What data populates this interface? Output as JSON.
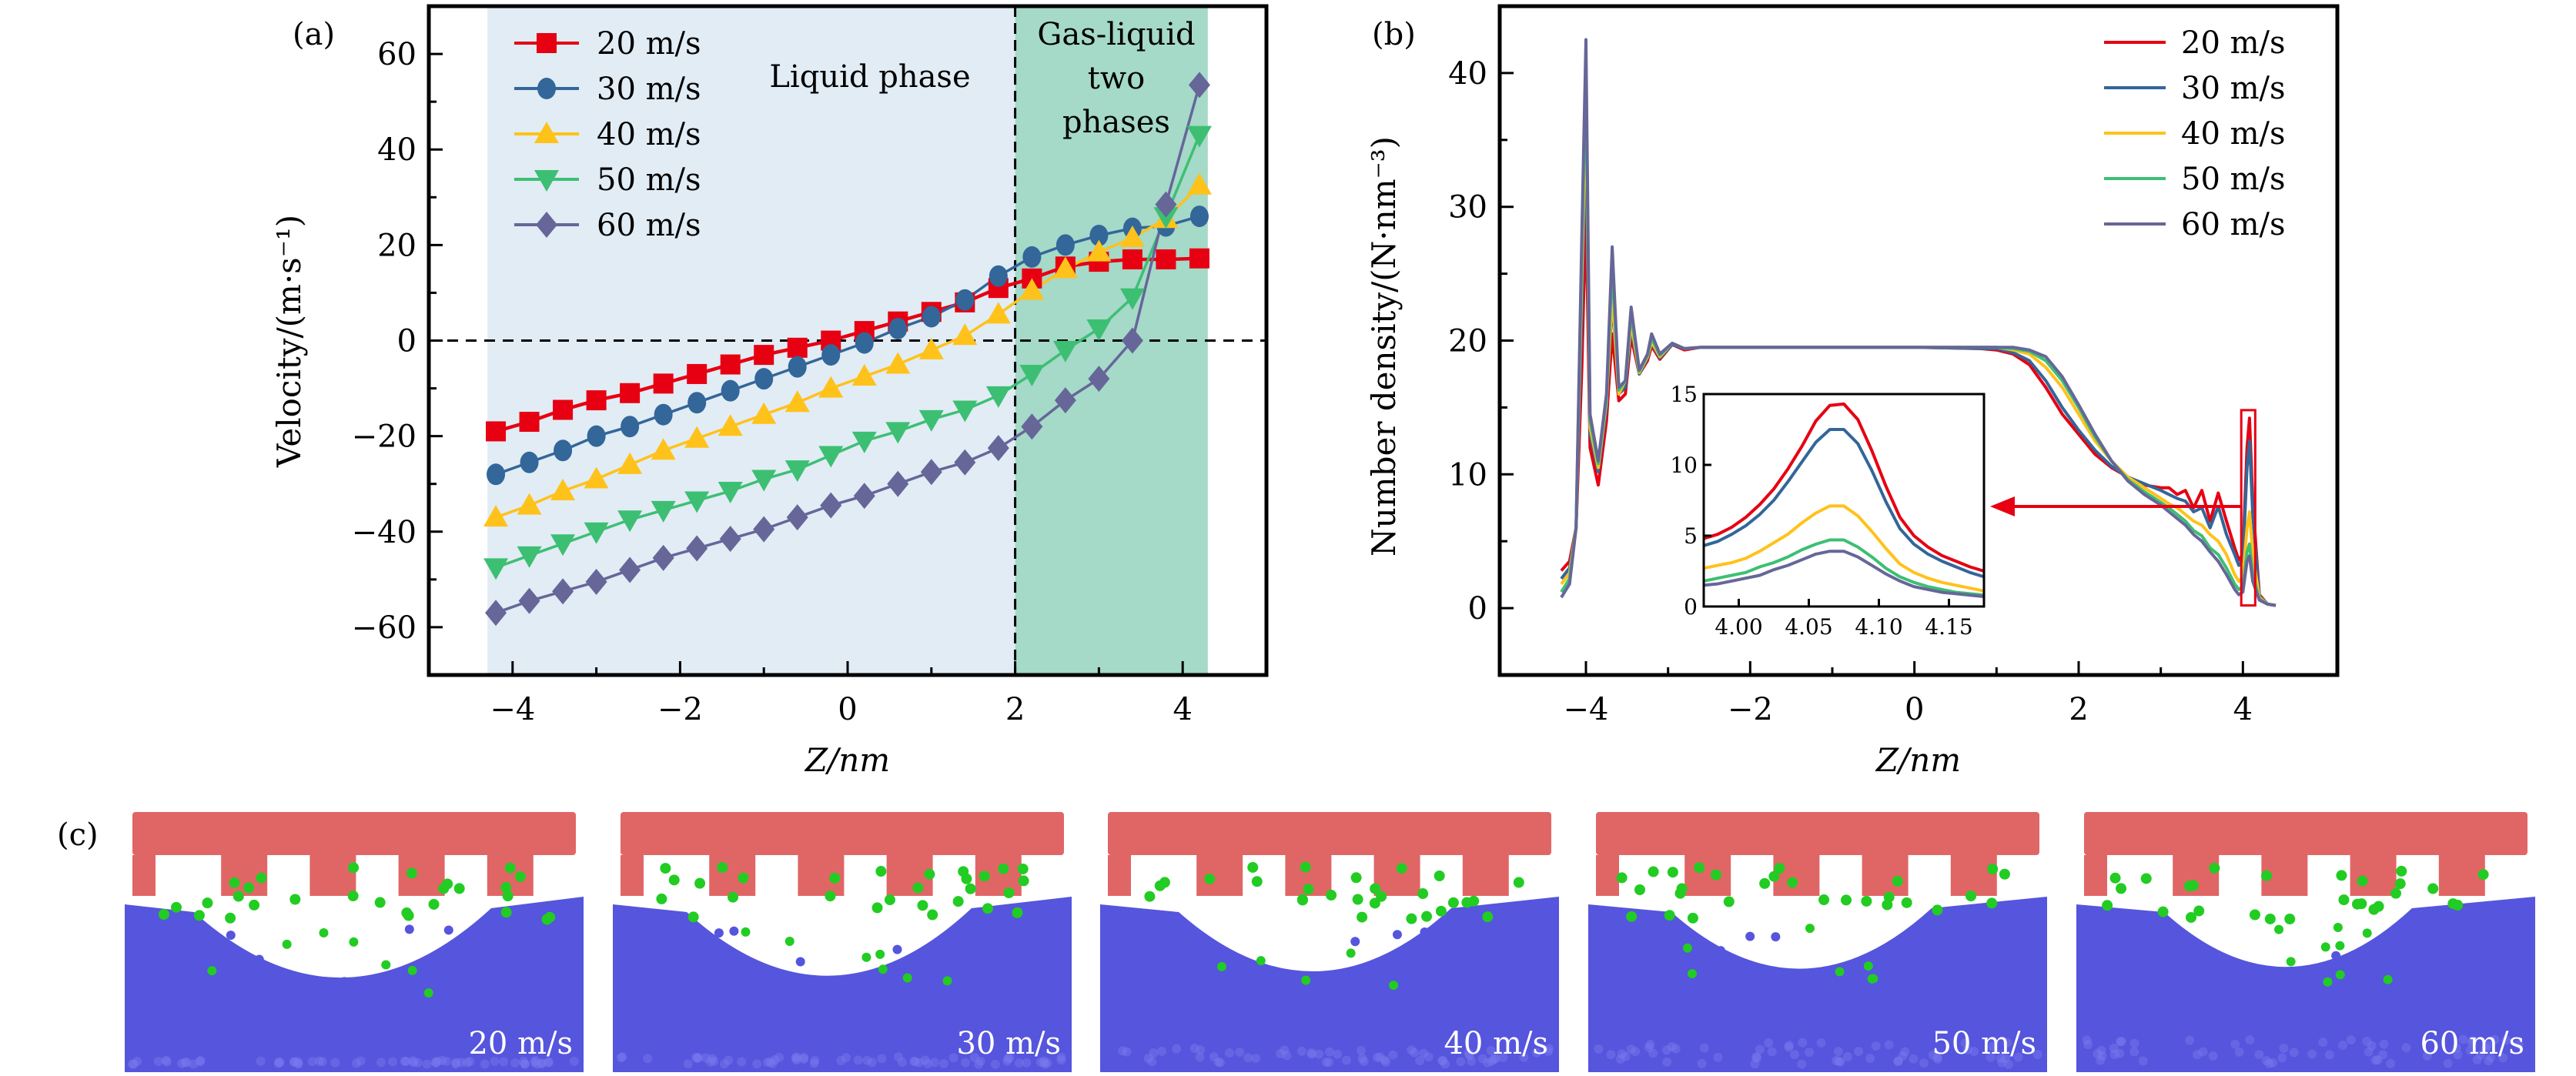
{
  "figure": {
    "panel_labels": [
      "(a)",
      "(b)",
      "(c)"
    ]
  },
  "colors": {
    "20 m/s": "#e60012",
    "30 m/s": "#336699",
    "40 m/s": "#ffc21a",
    "50 m/s": "#3dbf73",
    "60 m/s": "#666699",
    "liquid_region": "#e1ecf5",
    "twophase_region": "#a5d9c8",
    "atom_wall": "#e06666",
    "atom_gas": "#22cc22",
    "atom_liquid": "#5555dd"
  },
  "chart_data": [
    {
      "id": "a",
      "type": "line",
      "title": "",
      "xlabel": "Z/nm",
      "ylabel": "Velocity/(m·s⁻¹)",
      "xlim": [
        -5,
        5
      ],
      "ylim": [
        -70,
        70
      ],
      "xticks": [
        -4,
        -2,
        0,
        2,
        4
      ],
      "xtick_labels": [
        "−4",
        "−2",
        "0",
        "2",
        "4"
      ],
      "yticks": [
        -60,
        -40,
        -20,
        0,
        20,
        40,
        60
      ],
      "ytick_labels": [
        "−60",
        "−40",
        "−20",
        "0",
        "20",
        "40",
        "60"
      ],
      "grid": false,
      "legend": "top-left",
      "reference_lines": [
        {
          "axis": "y",
          "value": 0,
          "style": "dashed"
        },
        {
          "axis": "x",
          "value": 2,
          "style": "dashed"
        }
      ],
      "regions": [
        {
          "label": "Liquid phase",
          "x": [
            -4.3,
            2
          ]
        },
        {
          "label": "Gas-liquid two phases",
          "lines": [
            "Gas-liquid",
            "two",
            "phases"
          ],
          "x": [
            2,
            4.3
          ]
        }
      ],
      "x": [
        -4.2,
        -3.8,
        -3.4,
        -3.0,
        -2.6,
        -2.2,
        -1.8,
        -1.4,
        -1.0,
        -0.6,
        -0.2,
        0.2,
        0.6,
        1.0,
        1.4,
        1.8,
        2.2,
        2.6,
        3.0,
        3.4,
        3.8,
        4.2
      ],
      "series": [
        {
          "name": "20 m/s",
          "marker": "square",
          "values": [
            -19,
            -17,
            -14.5,
            -12.5,
            -11,
            -9,
            -7,
            -5,
            -3,
            -1.5,
            0,
            2,
            4,
            6,
            8,
            11,
            13,
            15.5,
            16.5,
            17,
            17,
            17.2
          ]
        },
        {
          "name": "30 m/s",
          "marker": "circle",
          "values": [
            -28,
            -25.5,
            -23,
            -20,
            -18,
            -15.5,
            -13,
            -10.5,
            -8,
            -5.5,
            -3,
            -0.5,
            2.5,
            5,
            8.5,
            13.5,
            17.5,
            20,
            22,
            23.5,
            24,
            26
          ]
        },
        {
          "name": "40 m/s",
          "marker": "triangle-up",
          "values": [
            -37,
            -34.5,
            -31.5,
            -29,
            -26,
            -23,
            -20.5,
            -18,
            -15.5,
            -13,
            -10,
            -7.5,
            -5,
            -2,
            1,
            5.5,
            10.5,
            15,
            18.5,
            21.5,
            25.5,
            32.5
          ]
        },
        {
          "name": "50 m/s",
          "marker": "triangle-down",
          "values": [
            -47.5,
            -45,
            -42.5,
            -40,
            -37.5,
            -35.5,
            -33.5,
            -31.5,
            -29,
            -27,
            -24,
            -21,
            -19,
            -16.5,
            -14.5,
            -11.5,
            -7,
            -2,
            2.5,
            9,
            26,
            43
          ]
        },
        {
          "name": "60 m/s",
          "marker": "diamond",
          "values": [
            -57,
            -54.5,
            -52.5,
            -50.5,
            -48,
            -45.5,
            -43.5,
            -41.5,
            -39.5,
            -37,
            -34.5,
            -32.5,
            -30,
            -27.5,
            -25.5,
            -22.5,
            -18,
            -12.5,
            -8,
            0,
            28.5,
            53.5
          ]
        }
      ]
    },
    {
      "id": "b",
      "type": "line",
      "title": "",
      "xlabel": "Z/nm",
      "ylabel": "Number density/(N·nm⁻³)",
      "xlim": [
        -5.05,
        5.15
      ],
      "ylim": [
        -5,
        45
      ],
      "xticks": [
        -4,
        -2,
        0,
        2,
        4
      ],
      "xtick_labels": [
        "−4",
        "−2",
        "0",
        "2",
        "4"
      ],
      "yticks": [
        0,
        10,
        20,
        30,
        40
      ],
      "ytick_labels": [
        "0",
        "10",
        "20",
        "30",
        "40"
      ],
      "grid": false,
      "legend": "top-right",
      "annotation": "red box at Z≈4.07 magnified in inset (arrow)",
      "x": [
        -4.3,
        -4.2,
        -4.12,
        -4.05,
        -4.0,
        -3.95,
        -3.85,
        -3.75,
        -3.68,
        -3.6,
        -3.52,
        -3.45,
        -3.35,
        -3.25,
        -3.2,
        -3.1,
        -2.95,
        -2.8,
        -2.6,
        -2.4,
        -2.0,
        -1.0,
        0.0,
        0.8,
        1.0,
        1.2,
        1.4,
        1.6,
        1.8,
        2.0,
        2.2,
        2.4,
        2.6,
        2.8,
        3.0,
        3.1,
        3.2,
        3.3,
        3.4,
        3.5,
        3.6,
        3.7,
        3.8,
        3.9,
        3.95,
        4.0,
        4.05,
        4.08,
        4.12,
        4.2,
        4.3,
        4.4
      ],
      "series": [
        {
          "name": "20 m/s",
          "values": [
            2.8,
            3.5,
            6,
            18,
            30,
            12,
            9.2,
            14,
            20.5,
            15.5,
            16,
            20.3,
            17.5,
            18.5,
            19.6,
            18.6,
            19.7,
            19.3,
            19.5,
            19.5,
            19.5,
            19.5,
            19.5,
            19.4,
            19.3,
            19.0,
            18.2,
            16.5,
            14.5,
            13.0,
            11.5,
            10.5,
            9.8,
            9.2,
            9.0,
            9.0,
            8.5,
            8.8,
            7.5,
            8.8,
            6.5,
            8.6,
            6.5,
            4.5,
            3.6,
            4.0,
            12.0,
            14.2,
            8.0,
            1.0,
            0.3,
            0.2
          ]
        },
        {
          "name": "30 m/s",
          "values": [
            2.2,
            3.0,
            6,
            22,
            36,
            13,
            10.2,
            15,
            23,
            16,
            16.5,
            21,
            17.5,
            18.7,
            19.8,
            18.7,
            19.7,
            19.4,
            19.5,
            19.5,
            19.5,
            19.5,
            19.5,
            19.4,
            19.4,
            19.1,
            18.5,
            17.0,
            15.0,
            13.3,
            11.8,
            10.6,
            9.8,
            9.3,
            8.8,
            8.5,
            8.2,
            8.0,
            7.2,
            7.5,
            6.0,
            7.6,
            5.5,
            4.0,
            3.2,
            3.6,
            10.5,
            12.5,
            7.0,
            0.9,
            0.3,
            0.2
          ]
        },
        {
          "name": "40 m/s",
          "values": [
            1.8,
            2.6,
            6,
            25,
            38,
            13.5,
            10.5,
            15.5,
            23.5,
            16,
            17,
            21.3,
            17.6,
            18.8,
            19.9,
            18.8,
            19.8,
            19.4,
            19.5,
            19.5,
            19.5,
            19.5,
            19.5,
            19.5,
            19.5,
            19.3,
            19.0,
            18.0,
            16.5,
            14.5,
            12.5,
            11.0,
            9.8,
            9.0,
            8.2,
            7.8,
            7.5,
            7.0,
            6.5,
            6.2,
            5.5,
            5.0,
            4.0,
            2.5,
            2.0,
            2.3,
            6.0,
            7.2,
            4.0,
            0.8,
            0.3,
            0.2
          ]
        },
        {
          "name": "50 m/s",
          "values": [
            1.2,
            2.2,
            6,
            27,
            40,
            14,
            10.8,
            15.8,
            25.5,
            16.3,
            17,
            22,
            17.7,
            18.9,
            20.2,
            18.9,
            19.8,
            19.4,
            19.5,
            19.5,
            19.5,
            19.5,
            19.5,
            19.5,
            19.5,
            19.4,
            19.2,
            18.5,
            17.0,
            15.0,
            12.8,
            11.0,
            9.6,
            8.7,
            7.9,
            7.5,
            7.0,
            6.5,
            5.8,
            5.4,
            4.5,
            4.0,
            3.0,
            1.8,
            1.4,
            1.6,
            4.2,
            4.8,
            2.5,
            0.7,
            0.3,
            0.2
          ]
        },
        {
          "name": "60 m/s",
          "values": [
            0.8,
            1.8,
            6,
            28,
            42.5,
            14.5,
            11,
            16,
            27,
            16.5,
            17,
            22.5,
            17.8,
            19.0,
            20.5,
            19.0,
            19.8,
            19.4,
            19.5,
            19.5,
            19.5,
            19.5,
            19.5,
            19.5,
            19.5,
            19.5,
            19.3,
            18.8,
            17.3,
            15.2,
            13.0,
            11.0,
            9.5,
            8.5,
            7.7,
            7.2,
            6.7,
            6.2,
            5.5,
            5.0,
            4.2,
            3.5,
            2.5,
            1.4,
            1.0,
            1.2,
            3.5,
            3.9,
            2.0,
            0.6,
            0.3,
            0.2
          ]
        }
      ],
      "inset": {
        "type": "line",
        "xlim": [
          3.975,
          4.175
        ],
        "ylim": [
          0,
          15
        ],
        "xticks": [
          4.0,
          4.05,
          4.1,
          4.15
        ],
        "xtick_labels": [
          "4.00",
          "4.05",
          "4.10",
          "4.15"
        ],
        "yticks": [
          0,
          5,
          10,
          15
        ],
        "ytick_labels": [
          "0",
          "5",
          "10",
          "15"
        ],
        "x": [
          3.975,
          3.985,
          3.995,
          4.005,
          4.015,
          4.025,
          4.035,
          4.045,
          4.055,
          4.065,
          4.075,
          4.085,
          4.095,
          4.105,
          4.115,
          4.125,
          4.135,
          4.145,
          4.155,
          4.165,
          4.175
        ],
        "series": [
          {
            "name": "20 m/s",
            "values": [
              4.8,
              5.1,
              5.6,
              6.3,
              7.2,
              8.3,
              9.7,
              11.3,
              13.1,
              14.2,
              14.3,
              13.2,
              11.0,
              8.5,
              6.3,
              5.0,
              4.2,
              3.6,
              3.2,
              2.8,
              2.5
            ]
          },
          {
            "name": "30 m/s",
            "values": [
              4.3,
              4.6,
              5.1,
              5.7,
              6.5,
              7.5,
              8.8,
              10.2,
              11.6,
              12.5,
              12.5,
              11.5,
              9.6,
              7.4,
              5.5,
              4.4,
              3.7,
              3.2,
              2.8,
              2.4,
              2.1
            ]
          },
          {
            "name": "40 m/s",
            "values": [
              2.7,
              2.9,
              3.1,
              3.4,
              3.9,
              4.5,
              5.1,
              5.9,
              6.6,
              7.1,
              7.1,
              6.4,
              5.3,
              4.1,
              3.0,
              2.4,
              2.0,
              1.7,
              1.5,
              1.3,
              1.1
            ]
          },
          {
            "name": "50 m/s",
            "values": [
              1.8,
              2.0,
              2.2,
              2.4,
              2.8,
              3.1,
              3.5,
              4.0,
              4.4,
              4.7,
              4.7,
              4.2,
              3.5,
              2.7,
              2.1,
              1.7,
              1.4,
              1.2,
              1.0,
              0.9,
              0.8
            ]
          },
          {
            "name": "60 m/s",
            "values": [
              1.5,
              1.6,
              1.8,
              2.0,
              2.2,
              2.6,
              2.9,
              3.3,
              3.7,
              3.9,
              3.9,
              3.5,
              2.9,
              2.3,
              1.8,
              1.4,
              1.2,
              1.0,
              0.9,
              0.8,
              0.7
            ]
          }
        ]
      }
    }
  ],
  "panel_c": {
    "description": "Molecular dynamics snapshots: wall atoms (red), gas atoms (green), liquid atoms (blue)",
    "snapshots": [
      {
        "label": "20 m/s"
      },
      {
        "label": "30 m/s"
      },
      {
        "label": "40 m/s"
      },
      {
        "label": "50 m/s"
      },
      {
        "label": "60 m/s"
      }
    ]
  }
}
